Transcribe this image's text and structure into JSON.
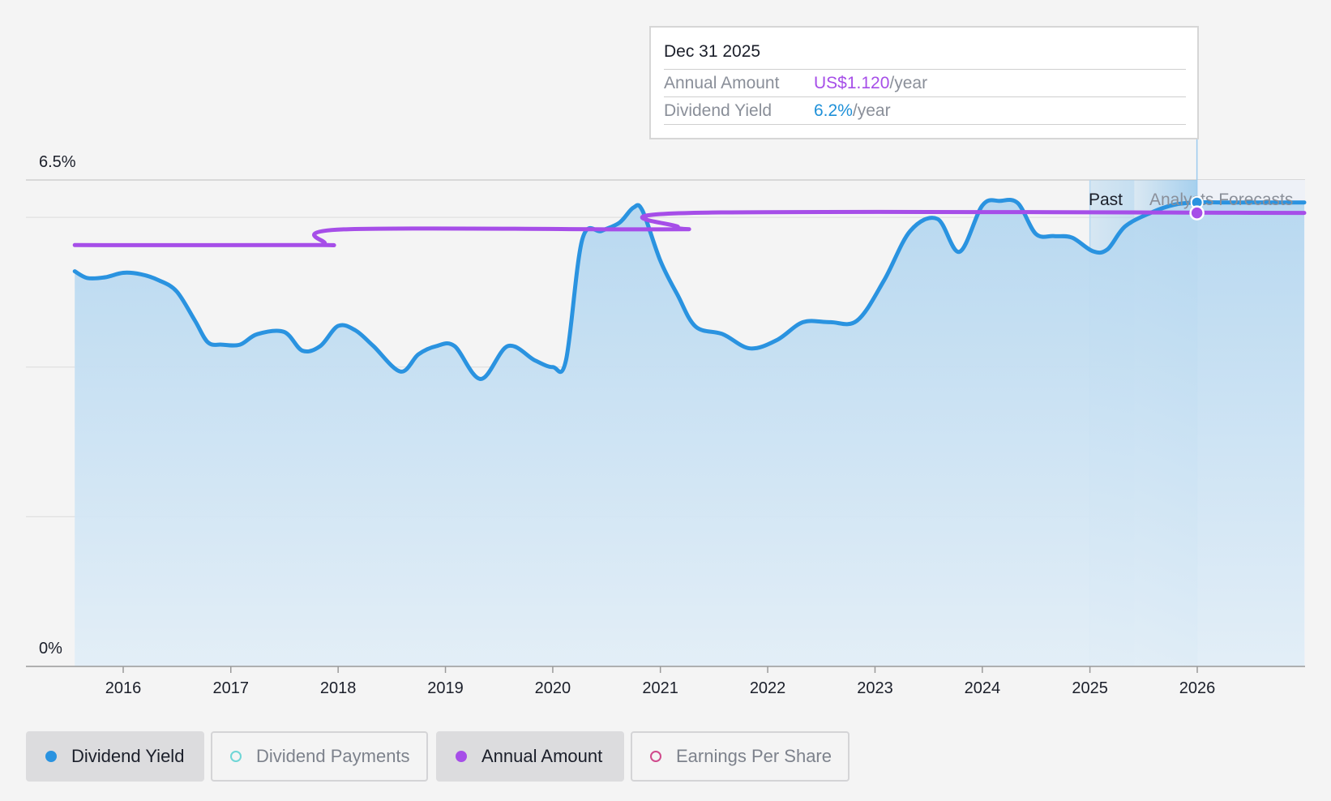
{
  "chart_data": {
    "type": "line",
    "x_axis": {
      "ticks": [
        "2016",
        "2017",
        "2018",
        "2019",
        "2020",
        "2021",
        "2022",
        "2023",
        "2024",
        "2025",
        "2026"
      ],
      "range": [
        "2015-07-01",
        "2026-12-31"
      ]
    },
    "y_axis": {
      "unit": "%",
      "range": [
        0,
        6.5
      ],
      "tick_labels": [
        "6.5%",
        "0%"
      ]
    },
    "grid": true,
    "regions": {
      "past_label": "Past",
      "forecast_label": "Analysts Forecasts",
      "past_band": [
        "2025-01-01",
        "2025-06-01"
      ],
      "forecast_start": "2025-06-01",
      "today": "2025-12-31"
    },
    "series": [
      {
        "name": "Dividend Yield",
        "unit": "%",
        "color": "#2a93e0",
        "fill": true,
        "points": [
          [
            "2015-07-20",
            5.28
          ],
          [
            "2015-09-01",
            5.19
          ],
          [
            "2015-11-01",
            5.2
          ],
          [
            "2016-01-01",
            5.26
          ],
          [
            "2016-03-01",
            5.24
          ],
          [
            "2016-05-01",
            5.16
          ],
          [
            "2016-07-01",
            5.01
          ],
          [
            "2016-09-01",
            4.62
          ],
          [
            "2016-10-15",
            4.33
          ],
          [
            "2016-12-01",
            4.3
          ],
          [
            "2017-02-01",
            4.3
          ],
          [
            "2017-04-01",
            4.44
          ],
          [
            "2017-07-01",
            4.47
          ],
          [
            "2017-09-01",
            4.22
          ],
          [
            "2017-11-01",
            4.28
          ],
          [
            "2018-01-01",
            4.55
          ],
          [
            "2018-03-01",
            4.49
          ],
          [
            "2018-05-01",
            4.28
          ],
          [
            "2018-08-01",
            3.94
          ],
          [
            "2018-10-01",
            4.17
          ],
          [
            "2018-12-01",
            4.28
          ],
          [
            "2019-02-01",
            4.28
          ],
          [
            "2019-05-01",
            3.84
          ],
          [
            "2019-08-01",
            4.28
          ],
          [
            "2019-11-01",
            4.09
          ],
          [
            "2020-01-01",
            4.0
          ],
          [
            "2020-02-15",
            4.09
          ],
          [
            "2020-04-10",
            5.7
          ],
          [
            "2020-06-15",
            5.82
          ],
          [
            "2020-08-15",
            5.93
          ],
          [
            "2020-10-01",
            6.13
          ],
          [
            "2020-11-01",
            6.09
          ],
          [
            "2021-01-01",
            5.42
          ],
          [
            "2021-03-01",
            4.96
          ],
          [
            "2021-05-01",
            4.54
          ],
          [
            "2021-08-01",
            4.44
          ],
          [
            "2021-11-01",
            4.25
          ],
          [
            "2022-02-01",
            4.36
          ],
          [
            "2022-05-01",
            4.6
          ],
          [
            "2022-08-01",
            4.6
          ],
          [
            "2022-11-01",
            4.62
          ],
          [
            "2023-02-01",
            5.16
          ],
          [
            "2023-05-01",
            5.82
          ],
          [
            "2023-08-01",
            5.98
          ],
          [
            "2023-10-15",
            5.54
          ],
          [
            "2024-01-01",
            6.16
          ],
          [
            "2024-03-01",
            6.22
          ],
          [
            "2024-05-01",
            6.19
          ],
          [
            "2024-07-01",
            5.78
          ],
          [
            "2024-09-01",
            5.75
          ],
          [
            "2024-11-01",
            5.73
          ],
          [
            "2025-01-10",
            5.55
          ],
          [
            "2025-03-01",
            5.57
          ],
          [
            "2025-05-01",
            5.88
          ],
          [
            "2025-08-01",
            6.07
          ],
          [
            "2025-10-15",
            6.17
          ],
          [
            "2025-12-31",
            6.2
          ],
          [
            "2026-04-01",
            6.2
          ],
          [
            "2026-12-31",
            6.2
          ]
        ]
      },
      {
        "name": "Annual Amount",
        "unit": "US$",
        "color": "#a64ee8",
        "display_scale_note": "plotted on same visual band as yield",
        "points": [
          [
            "2015-07-20",
            5.63
          ],
          [
            "2017-10-10",
            5.63
          ],
          [
            "2017-11-15",
            5.65
          ],
          [
            "2018-01-20",
            5.84
          ],
          [
            "2021-01-01",
            5.84
          ],
          [
            "2021-03-01",
            5.87
          ],
          [
            "2021-04-15",
            6.06
          ],
          [
            "2026-12-31",
            6.06
          ]
        ]
      },
      {
        "name": "Dividend Payments",
        "color": "#6fd6d6",
        "points": []
      },
      {
        "name": "Earnings Per Share",
        "color": "#d04a8c",
        "points": []
      }
    ],
    "highlight_point": {
      "date": "2025-12-31",
      "series": "Annual Amount"
    }
  },
  "tooltip": {
    "date": "Dec 31 2025",
    "annual_amount_label": "Annual Amount",
    "annual_amount_value": "US$1.120",
    "annual_amount_suffix": "/year",
    "dividend_yield_label": "Dividend Yield",
    "dividend_yield_value": "6.2%",
    "dividend_yield_suffix": "/year"
  },
  "legend": [
    {
      "label": "Dividend Yield",
      "state": "active",
      "dot_color": "#2a93e0",
      "dot_style": "filled"
    },
    {
      "label": "Dividend Payments",
      "state": "inactive",
      "dot_color": "#6fd6d6",
      "dot_style": "ring"
    },
    {
      "label": "Annual Amount",
      "state": "active",
      "dot_color": "#a64ee8",
      "dot_style": "filled"
    },
    {
      "label": "Earnings Per Share",
      "state": "inactive",
      "dot_color": "#d04a8c",
      "dot_style": "ring"
    }
  ]
}
